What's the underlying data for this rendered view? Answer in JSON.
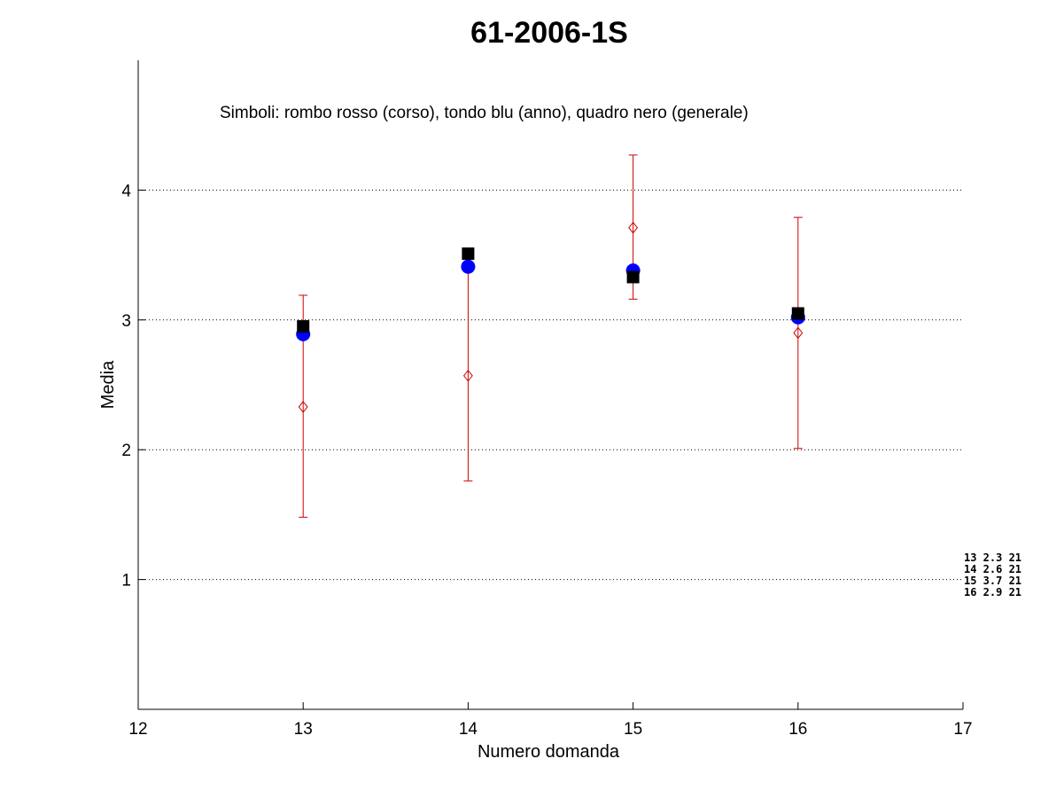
{
  "chart_data": {
    "type": "scatter",
    "title": "61-2006-1S",
    "xlabel": "Numero domanda",
    "ylabel": "Media",
    "xlim": [
      12,
      17
    ],
    "ylim": [
      0,
      5
    ],
    "xticks": [
      "12",
      "13",
      "14",
      "15",
      "16",
      "17"
    ],
    "yticks": [
      "1",
      "2",
      "3",
      "4"
    ],
    "grid": "horizontal dotted",
    "annotation": "Simboli: rombo rosso (corso), tondo blu (anno), quadro nero (generale)",
    "series": [
      {
        "marker": "diamond",
        "color": "#cc0000",
        "x": [
          13,
          14,
          15,
          16
        ],
        "y": [
          2.33,
          2.57,
          3.71,
          2.9
        ],
        "err_low": [
          1.48,
          1.76,
          3.16,
          2.01
        ],
        "err_high": [
          3.19,
          3.37,
          4.27,
          3.79
        ]
      },
      {
        "marker": "circle",
        "color": "#0000ff",
        "x": [
          13,
          14,
          15,
          16
        ],
        "y": [
          2.89,
          3.41,
          3.38,
          3.02
        ]
      },
      {
        "marker": "square",
        "color": "#000000",
        "x": [
          13,
          14,
          15,
          16
        ],
        "y": [
          2.95,
          3.51,
          3.33,
          3.05
        ]
      }
    ],
    "side_table": [
      "13  2.3  21",
      "14  2.6  21",
      "15  3.7  21",
      "16  2.9  21"
    ]
  }
}
